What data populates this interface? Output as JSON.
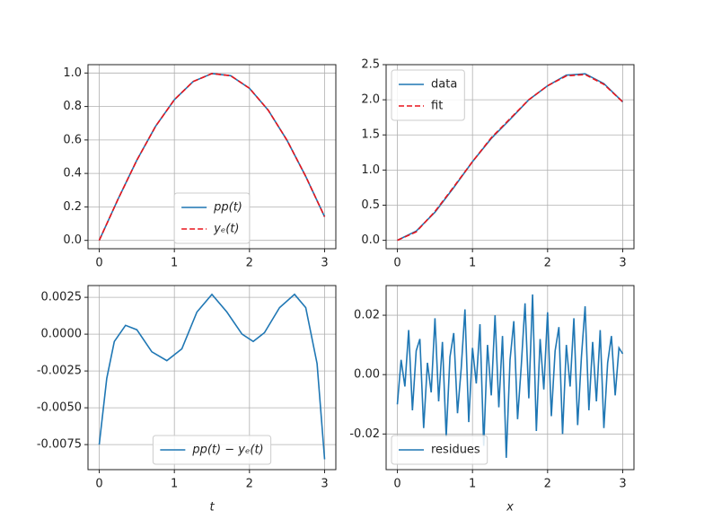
{
  "chart_data": [
    {
      "type": "line",
      "x": [
        0,
        0.25,
        0.5,
        0.75,
        1,
        1.25,
        1.5,
        1.75,
        2,
        2.25,
        2.5,
        2.75,
        3
      ],
      "series": [
        {
          "name": "pp(t)",
          "color": "#1f77b4",
          "linestyle": "solid",
          "values": [
            0,
            0.247,
            0.479,
            0.682,
            0.841,
            0.949,
            0.997,
            0.984,
            0.909,
            0.778,
            0.598,
            0.382,
            0.141
          ]
        },
        {
          "name": "yₑ(t)",
          "color": "#e8141b",
          "linestyle": "dashed",
          "values": [
            0,
            0.247,
            0.479,
            0.682,
            0.841,
            0.949,
            0.997,
            0.984,
            0.909,
            0.778,
            0.598,
            0.382,
            0.141
          ]
        }
      ],
      "xlim": [
        -0.15,
        3.15
      ],
      "xticks": [
        0,
        1,
        2,
        3
      ],
      "ylim": [
        -0.05,
        1.05
      ],
      "yticks": [
        {
          "value": 0,
          "label": "0.0"
        },
        0.2,
        0.4,
        0.6,
        0.8,
        {
          "value": 1,
          "label": "1.0"
        }
      ],
      "grid": true,
      "legend": "lower center"
    },
    {
      "type": "line",
      "x": [
        0,
        0.25,
        0.5,
        0.75,
        1,
        1.25,
        1.5,
        1.75,
        2,
        2.25,
        2.5,
        2.75,
        3
      ],
      "series": [
        {
          "name": "data",
          "color": "#1f77b4",
          "linestyle": "solid",
          "values": [
            0,
            0.13,
            0.4,
            0.75,
            1.12,
            1.45,
            1.72,
            2.0,
            2.2,
            2.35,
            2.37,
            2.23,
            1.97
          ]
        },
        {
          "name": "fit",
          "color": "#e8141b",
          "linestyle": "dashed",
          "values": [
            0,
            0.12,
            0.41,
            0.76,
            1.12,
            1.46,
            1.73,
            2.0,
            2.2,
            2.34,
            2.36,
            2.22,
            1.97
          ]
        }
      ],
      "xlim": [
        -0.15,
        3.15
      ],
      "xticks": [
        0,
        1,
        2,
        3
      ],
      "ylim": [
        -0.12,
        2.5
      ],
      "yticks": [
        {
          "value": 0,
          "label": "0.0"
        },
        0.5,
        {
          "value": 1,
          "label": "1.0"
        },
        1.5,
        {
          "value": 2,
          "label": "2.0"
        },
        2.5
      ],
      "grid": true,
      "legend": "upper left"
    },
    {
      "type": "line",
      "x": [
        0,
        0.1,
        0.2,
        0.35,
        0.5,
        0.7,
        0.9,
        1.1,
        1.3,
        1.5,
        1.7,
        1.9,
        2.05,
        2.2,
        2.4,
        2.6,
        2.75,
        2.9,
        3.0
      ],
      "series": [
        {
          "name": "pp(t) − yₑ(t)",
          "color": "#1f77b4",
          "linestyle": "solid",
          "values": [
            -0.0075,
            -0.003,
            -0.0005,
            0.0006,
            0.0003,
            -0.0012,
            -0.0018,
            -0.001,
            0.0015,
            0.0027,
            0.0015,
            0.0,
            -0.0005,
            0.0001,
            0.0018,
            0.0027,
            0.0018,
            -0.002,
            -0.0085
          ]
        }
      ],
      "xlim": [
        -0.15,
        3.15
      ],
      "xticks": [
        0,
        1,
        2,
        3
      ],
      "ylim": [
        -0.0092,
        0.0033
      ],
      "yticks": [
        {
          "value": -0.0075,
          "label": "-0.0075"
        },
        {
          "value": -0.005,
          "label": "-0.0050"
        },
        -0.0025,
        {
          "value": 0,
          "label": "0.0000"
        },
        0.0025
      ],
      "xlabel": "t",
      "grid": true,
      "legend": "lower center"
    },
    {
      "type": "line",
      "x": [
        0,
        0.05,
        0.1,
        0.15,
        0.2,
        0.25,
        0.3,
        0.35,
        0.4,
        0.45,
        0.5,
        0.55,
        0.6,
        0.65,
        0.7,
        0.75,
        0.8,
        0.85,
        0.9,
        0.95,
        1,
        1.05,
        1.1,
        1.15,
        1.2,
        1.25,
        1.3,
        1.35,
        1.4,
        1.45,
        1.5,
        1.55,
        1.6,
        1.65,
        1.7,
        1.75,
        1.8,
        1.85,
        1.9,
        1.95,
        2,
        2.05,
        2.1,
        2.15,
        2.2,
        2.25,
        2.3,
        2.35,
        2.4,
        2.45,
        2.5,
        2.55,
        2.6,
        2.65,
        2.7,
        2.75,
        2.8,
        2.85,
        2.9,
        2.95,
        3
      ],
      "series": [
        {
          "name": "residues",
          "color": "#1f77b4",
          "linestyle": "solid",
          "values": [
            -0.01,
            0.005,
            -0.004,
            0.015,
            -0.012,
            0.008,
            0.012,
            -0.018,
            0.004,
            -0.006,
            0.019,
            -0.009,
            0.011,
            -0.021,
            0.006,
            0.014,
            -0.013,
            0.002,
            0.022,
            -0.016,
            0.009,
            -0.003,
            0.017,
            -0.024,
            0.01,
            -0.007,
            0.02,
            -0.011,
            0.013,
            -0.028,
            0.005,
            0.018,
            -0.015,
            0.003,
            0.024,
            -0.008,
            0.027,
            -0.019,
            0.012,
            -0.005,
            0.021,
            -0.014,
            0.008,
            0.016,
            -0.02,
            0.01,
            -0.004,
            0.019,
            -0.017,
            0.006,
            0.023,
            -0.012,
            0.011,
            -0.009,
            0.015,
            -0.018,
            0.004,
            0.013,
            -0.007,
            0.009,
            0.007
          ]
        }
      ],
      "xlim": [
        -0.15,
        3.15
      ],
      "xticks": [
        0,
        1,
        2,
        3
      ],
      "ylim": [
        -0.032,
        0.03
      ],
      "yticks": [
        -0.02,
        {
          "value": 0,
          "label": "0.00"
        },
        0.02
      ],
      "xlabel": "x",
      "grid": true,
      "legend": "lower left"
    }
  ]
}
